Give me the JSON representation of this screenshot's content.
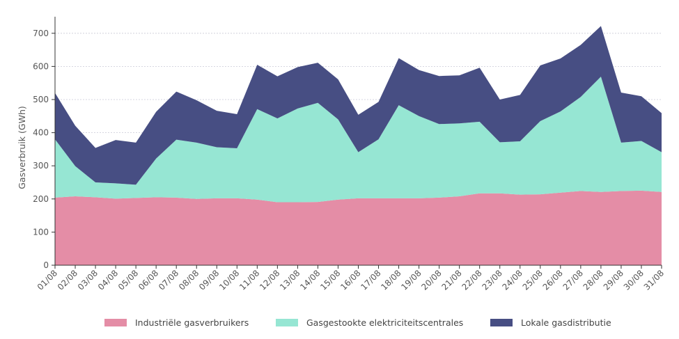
{
  "chart_data": {
    "type": "area",
    "stacked": true,
    "title": "",
    "xlabel": "",
    "ylabel": "Gasverbruik (GWh)",
    "ylim": [
      0,
      750
    ],
    "yticks": [
      0,
      100,
      200,
      300,
      400,
      500,
      600,
      700
    ],
    "grid": true,
    "legend_position": "bottom",
    "categories": [
      "01/08",
      "02/08",
      "03/08",
      "04/08",
      "05/08",
      "06/08",
      "07/08",
      "08/08",
      "09/08",
      "10/08",
      "11/08",
      "12/08",
      "13/08",
      "14/08",
      "15/08",
      "16/08",
      "17/08",
      "18/08",
      "19/08",
      "20/08",
      "21/08",
      "22/08",
      "23/08",
      "24/08",
      "25/08",
      "26/08",
      "27/08",
      "28/08",
      "29/08",
      "30/08",
      "31/08"
    ],
    "series": [
      {
        "name": "Industriële gasverbruikers",
        "color": "#E48DA6",
        "values": [
          204,
          208,
          205,
          201,
          203,
          205,
          204,
          200,
          202,
          202,
          198,
          190,
          190,
          191,
          198,
          202,
          202,
          202,
          202,
          204,
          208,
          217,
          217,
          213,
          214,
          219,
          224,
          221,
          224,
          225,
          221
        ]
      },
      {
        "name": "Gasgestookte elektriciteitscentrales",
        "color": "#96E6D3",
        "values": [
          176,
          91,
          45,
          46,
          40,
          117,
          175,
          170,
          154,
          151,
          273,
          253,
          283,
          299,
          242,
          139,
          178,
          281,
          248,
          222,
          220,
          216,
          154,
          161,
          221,
          245,
          284,
          348,
          146,
          150,
          120
        ]
      },
      {
        "name": "Lokale gasdistributie",
        "color": "#474E83",
        "values": [
          140,
          122,
          104,
          131,
          127,
          141,
          145,
          128,
          110,
          103,
          134,
          127,
          125,
          121,
          121,
          113,
          113,
          142,
          139,
          145,
          145,
          163,
          129,
          140,
          168,
          160,
          157,
          153,
          151,
          135,
          118
        ]
      }
    ]
  }
}
